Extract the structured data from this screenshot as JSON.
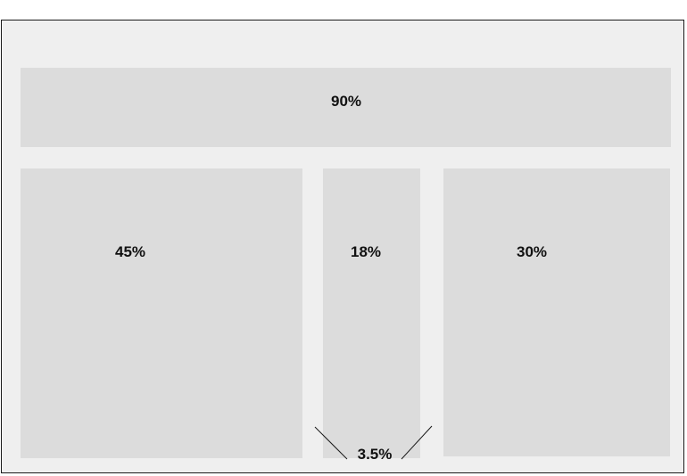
{
  "blocks": {
    "top": {
      "label": "90%"
    },
    "left": {
      "label": "45%"
    },
    "middle": {
      "label": "18%"
    },
    "right": {
      "label": "30%"
    }
  },
  "gap_annotation": {
    "label": "3.5%"
  }
}
